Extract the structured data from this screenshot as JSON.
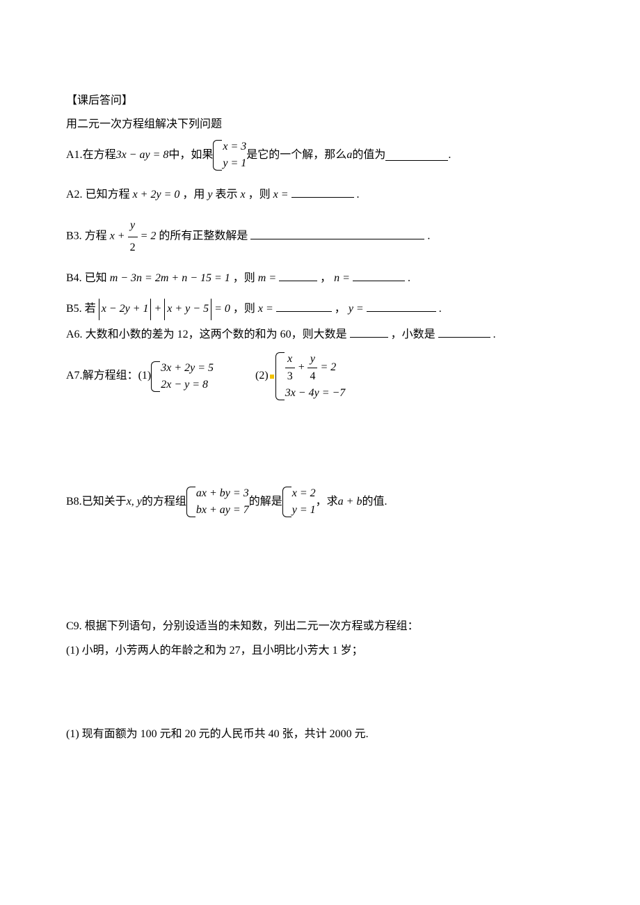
{
  "heading": "【课后答问】",
  "intro": "用二元一次方程组解决下列问题",
  "a1": {
    "label": "A1.",
    "t1": "在方程 ",
    "eq": "3x − ay = 8",
    "t2": " 中，如果 ",
    "sys1": "x = 3",
    "sys2": "y = 1",
    "t3": " 是它的一个解，那么 ",
    "var": "a",
    "t4": " 的值为",
    "blank_w": 90,
    "t5": "."
  },
  "a2": {
    "label": "A2.",
    "t1": "已知方程 ",
    "eq": "x + 2y = 0",
    "t2": "，用 ",
    "v1": "y",
    "t3": " 表示 ",
    "v2": "x",
    "t4": "，则 ",
    "v3": "x =",
    "blank_w": 90,
    "t5": "."
  },
  "b3": {
    "label": "B3.",
    "t1": "方程 ",
    "lhs": "x + ",
    "num": "y",
    "den": "2",
    "rhs": " = 2",
    "t2": " 的所有正整数解是",
    "blank_w": 250,
    "t3": "."
  },
  "b4": {
    "label": "B4.",
    "t1": "已知 ",
    "eq": "m − 3n = 2m + n − 15 = 1",
    "t2": "，则 ",
    "v1": "m =",
    "blank1_w": 55,
    "t3": "，",
    "v2": "n =",
    "blank2_w": 75,
    "t4": "."
  },
  "b5": {
    "label": "B5.",
    "t1": "若 ",
    "abs1": "x − 2y + 1",
    "plus": " + ",
    "abs2": "x + y − 5",
    "eq0": " = 0",
    "t2": "，则 ",
    "v1": "x =",
    "blank1_w": 80,
    "t3": "，",
    "v2": "y =",
    "blank2_w": 100,
    "t4": "."
  },
  "a6": {
    "label": "A6.",
    "t1": "大数和小数的差为 12，这两个数的和为 60，则大数是",
    "blank1_w": 55,
    "t2": "，小数是",
    "blank2_w": 75,
    "t3": "."
  },
  "a7": {
    "label": "A7.",
    "t1": "解方程组：(1) ",
    "s1r1": "3x + 2y = 5",
    "s1r2": "2x − y = 8",
    "t2": "(2)",
    "s2r1_lhs": "",
    "s2r1_f1n": "x",
    "s2r1_f1d": "3",
    "s2r1_plus": " + ",
    "s2r1_f2n": "y",
    "s2r1_f2d": "4",
    "s2r1_rhs": " = 2",
    "s2r2": "3x − 4y = −7"
  },
  "b8": {
    "label": "B8.",
    "t1": "已知关于 ",
    "vars": "x, y",
    "t2": " 的方程组 ",
    "s1r1": "ax + by = 3",
    "s1r2": "bx + ay = 7",
    "t3": " 的解是 ",
    "s2r1": "x = 2",
    "s2r2": "y = 1",
    "t4": "，求 ",
    "expr": "a + b",
    "t5": " 的值."
  },
  "c9": {
    "label": "C9.",
    "t1": "根据下列语句，分别设适当的未知数，列出二元一次方程或方程组："
  },
  "c9a": {
    "t1": "(1) 小明，小芳两人的年龄之和为 27，且小明比小芳大 1 岁；"
  },
  "c9b": {
    "t1": "(1) 现有面额为 100 元和 20 元的人民币共 40 张，共计 2000 元."
  }
}
